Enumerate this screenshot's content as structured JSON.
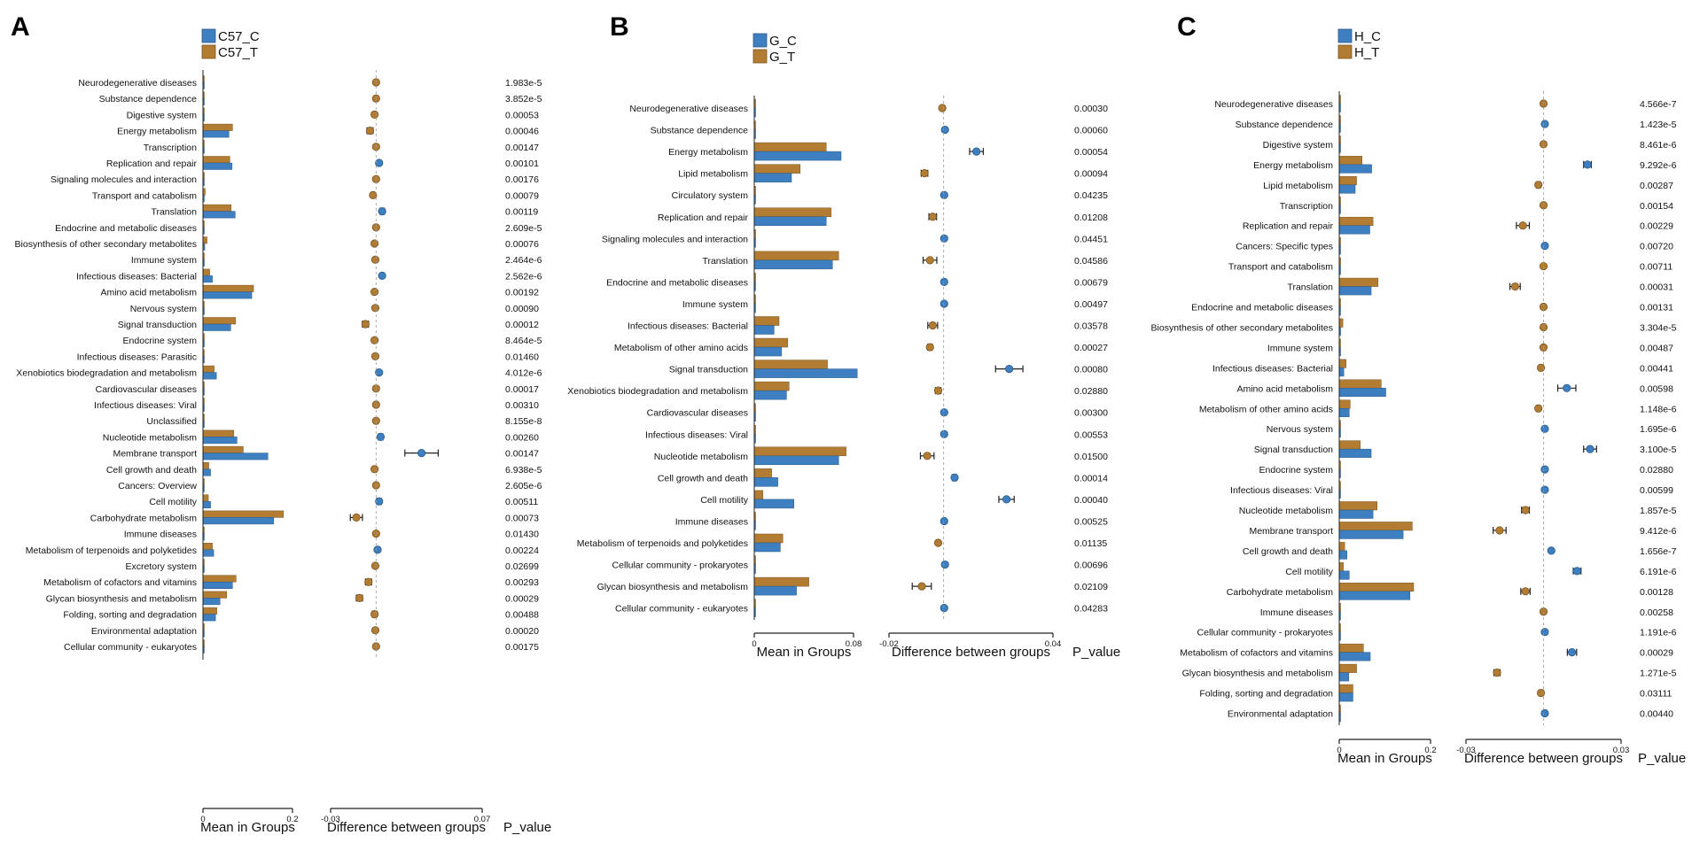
{
  "figure": {
    "colors": {
      "control": "#3d7fc0",
      "treatment": "#b27d33",
      "control_stroke": "#2a5a8a",
      "treatment_stroke": "#7a5420",
      "axis": "#222222"
    }
  },
  "chart_data": [
    {
      "type": "bar",
      "panel_label": "A",
      "legend": [
        "C57_C",
        "C57_T"
      ],
      "bar_axis_label": "Mean in Groups",
      "bar_xlim": [
        0,
        0.2
      ],
      "bar_ticks": [
        "0",
        "0.2"
      ],
      "diff_axis_label": "Difference between groups",
      "diff_xlim": [
        -0.03,
        0.07
      ],
      "diff_ticks": [
        "-0.03",
        "0.07"
      ],
      "pvalue_label": "P_value",
      "categories": [
        "Neurodegenerative diseases",
        "Substance dependence",
        "Digestive system",
        "Energy metabolism",
        "Transcription",
        "Replication and repair",
        "Signaling molecules and interaction",
        "Transport and catabolism",
        "Translation",
        "Endocrine and metabolic diseases",
        "Biosynthesis of other secondary metabolites",
        "Immune system",
        "Infectious diseases: Bacterial",
        "Amino acid metabolism",
        "Nervous system",
        "Signal transduction",
        "Endocrine system",
        "Infectious diseases: Parasitic",
        "Xenobiotics biodegradation and metabolism",
        "Cardiovascular diseases",
        "Infectious diseases: Viral",
        "Unclassified",
        "Nucleotide metabolism",
        "Membrane transport",
        "Cell growth and death",
        "Cancers: Overview",
        "Cell motility",
        "Carbohydrate metabolism",
        "Immune diseases",
        "Metabolism of terpenoids and polyketides",
        "Excretory system",
        "Metabolism of cofactors and vitamins",
        "Glycan biosynthesis and metabolism",
        "Folding, sorting and degradation",
        "Environmental adaptation",
        "Cellular community - eukaryotes"
      ],
      "series": [
        {
          "name": "C57_T",
          "values": [
            0.001,
            0.001,
            0.003,
            0.066,
            0.001,
            0.06,
            0.002,
            0.005,
            0.063,
            0.001,
            0.009,
            0.002,
            0.015,
            0.113,
            0.002,
            0.073,
            0.002,
            0.001,
            0.025,
            0.001,
            0.001,
            0.001,
            0.069,
            0.09,
            0.013,
            0.002,
            0.012,
            0.18,
            0.001,
            0.021,
            0.001,
            0.074,
            0.053,
            0.031,
            0.001,
            0.001
          ]
        },
        {
          "name": "C57_C",
          "values": [
            0.001,
            0.001,
            0.001,
            0.058,
            0.001,
            0.065,
            0.001,
            0.001,
            0.072,
            0.001,
            0.004,
            0.001,
            0.021,
            0.109,
            0.001,
            0.062,
            0.001,
            0.001,
            0.03,
            0.001,
            0.001,
            0.001,
            0.076,
            0.145,
            0.017,
            0.001,
            0.017,
            0.158,
            0.001,
            0.024,
            0.001,
            0.066,
            0.038,
            0.028,
            0.001,
            0.001
          ]
        }
      ],
      "differences": [
        0.0,
        0.0,
        -0.001,
        -0.004,
        0.0,
        0.002,
        0.0,
        -0.002,
        0.004,
        0.0,
        -0.001,
        -0.0005,
        0.004,
        -0.001,
        -0.0005,
        -0.007,
        -0.001,
        -0.0005,
        0.002,
        0.0,
        0.0,
        0.0,
        0.003,
        0.03,
        -0.001,
        0.0,
        0.002,
        -0.013,
        0.0,
        0.001,
        -0.0005,
        -0.005,
        -0.011,
        -0.001,
        -0.0005,
        0.0
      ],
      "errors": [
        0.0005,
        0.0005,
        0.001,
        0.002,
        0.0005,
        0.001,
        0.0005,
        0.001,
        0.0015,
        0.0005,
        0.001,
        0.0005,
        0.001,
        0.001,
        0.0005,
        0.002,
        0.0005,
        0.0005,
        0.001,
        0.0005,
        0.0005,
        0.0005,
        0.0015,
        0.011,
        0.001,
        0.0005,
        0.0015,
        0.004,
        0.0005,
        0.001,
        0.0005,
        0.002,
        0.002,
        0.0015,
        0.0005,
        0.0005
      ],
      "p_values": [
        "1.983e-5",
        "3.852e-5",
        "0.00053",
        "0.00046",
        "0.00147",
        "0.00101",
        "0.00176",
        "0.00079",
        "0.00119",
        "2.609e-5",
        "0.00076",
        "2.464e-6",
        "2.562e-6",
        "0.00192",
        "0.00090",
        "0.00012",
        "8.464e-5",
        "0.01460",
        "4.012e-6",
        "0.00017",
        "0.00310",
        "8.155e-8",
        "0.00260",
        "0.00147",
        "6.938e-5",
        "2.605e-6",
        "0.00511",
        "0.00073",
        "0.01430",
        "0.00224",
        "0.02699",
        "0.00293",
        "0.00029",
        "0.00488",
        "0.00020",
        "0.00175"
      ]
    },
    {
      "type": "bar",
      "panel_label": "B",
      "legend": [
        "G_C",
        "G_T"
      ],
      "bar_axis_label": "Mean in Groups",
      "bar_xlim": [
        0,
        0.08
      ],
      "bar_ticks": [
        "0",
        "0.08"
      ],
      "diff_axis_label": "Difference between groups",
      "diff_xlim": [
        -0.02,
        0.04
      ],
      "diff_ticks": [
        "-0.02",
        "0.04"
      ],
      "pvalue_label": "P_value",
      "categories": [
        "Neurodegenerative diseases",
        "Substance dependence",
        "Energy metabolism",
        "Lipid metabolism",
        "Circulatory system",
        "Replication and repair",
        "Signaling molecules and interaction",
        "Translation",
        "Endocrine and metabolic diseases",
        "Immune system",
        "Infectious diseases: Bacterial",
        "Metabolism of other amino acids",
        "Signal transduction",
        "Xenobiotics biodegradation and metabolism",
        "Cardiovascular diseases",
        "Infectious diseases: Viral",
        "Nucleotide metabolism",
        "Cell growth and death",
        "Cell motility",
        "Immune diseases",
        "Metabolism of terpenoids and polyketides",
        "Cellular community - prokaryotes",
        "Glycan biosynthesis and metabolism",
        "Cellular community - eukaryotes"
      ],
      "series": [
        {
          "name": "G_T",
          "values": [
            0.001,
            0.0005,
            0.058,
            0.037,
            0.0005,
            0.062,
            0.0005,
            0.068,
            0.0005,
            0.0005,
            0.02,
            0.027,
            0.059,
            0.028,
            0.0005,
            0.0005,
            0.074,
            0.014,
            0.007,
            0.0005,
            0.023,
            0.0005,
            0.044,
            0.0005
          ]
        },
        {
          "name": "G_C",
          "values": [
            0.001,
            0.0005,
            0.07,
            0.03,
            0.0005,
            0.058,
            0.0005,
            0.063,
            0.0005,
            0.0005,
            0.016,
            0.022,
            0.083,
            0.026,
            0.0005,
            0.0005,
            0.068,
            0.019,
            0.032,
            0.0005,
            0.021,
            0.0005,
            0.034,
            0.0005
          ]
        }
      ],
      "differences": [
        -0.0005,
        0.0005,
        0.012,
        -0.007,
        0.0002,
        -0.004,
        0.0002,
        -0.005,
        0.0002,
        0.0002,
        -0.004,
        -0.005,
        0.024,
        -0.002,
        0.0002,
        0.0002,
        -0.006,
        0.004,
        0.023,
        0.0002,
        -0.002,
        0.0005,
        -0.008,
        0.0002
      ],
      "errors": [
        0.0005,
        0.0005,
        0.0025,
        0.0012,
        0.0004,
        0.0014,
        0.0004,
        0.0025,
        0.0004,
        0.0004,
        0.0018,
        0.0008,
        0.005,
        0.001,
        0.0004,
        0.0004,
        0.0025,
        0.0008,
        0.0028,
        0.0004,
        0.0006,
        0.0004,
        0.0035,
        0.0004
      ],
      "p_values": [
        "0.00030",
        "0.00060",
        "0.00054",
        "0.00094",
        "0.04235",
        "0.01208",
        "0.04451",
        "0.04586",
        "0.00679",
        "0.00497",
        "0.03578",
        "0.00027",
        "0.00080",
        "0.02880",
        "0.00300",
        "0.00553",
        "0.01500",
        "0.00014",
        "0.00040",
        "0.00525",
        "0.01135",
        "0.00696",
        "0.02109",
        "0.04283"
      ]
    },
    {
      "type": "bar",
      "panel_label": "C",
      "legend": [
        "H_C",
        "H_T"
      ],
      "bar_axis_label": "Mean in Groups",
      "bar_xlim": [
        0,
        0.2
      ],
      "bar_ticks": [
        "0",
        "0.2"
      ],
      "diff_axis_label": "Difference between groups",
      "diff_xlim": [
        -0.03,
        0.03
      ],
      "diff_ticks": [
        "-0.03",
        "0.03"
      ],
      "pvalue_label": "P_value",
      "categories": [
        "Neurodegenerative diseases",
        "Substance dependence",
        "Digestive system",
        "Energy metabolism",
        "Lipid metabolism",
        "Transcription",
        "Replication and repair",
        "Cancers: Specific types",
        "Transport and catabolism",
        "Translation",
        "Endocrine and metabolic diseases",
        "Biosynthesis of other secondary metabolites",
        "Immune system",
        "Infectious diseases: Bacterial",
        "Amino acid metabolism",
        "Metabolism of other amino acids",
        "Nervous system",
        "Signal transduction",
        "Endocrine system",
        "Infectious diseases: Viral",
        "Nucleotide metabolism",
        "Membrane transport",
        "Cell growth and death",
        "Cell motility",
        "Carbohydrate metabolism",
        "Immune diseases",
        "Cellular community - prokaryotes",
        "Metabolism of cofactors and vitamins",
        "Glycan biosynthesis and metabolism",
        "Folding, sorting and degradation",
        "Environmental adaptation"
      ],
      "series": [
        {
          "name": "H_T",
          "values": [
            0.001,
            0.001,
            0.002,
            0.05,
            0.038,
            0.001,
            0.074,
            0.001,
            0.003,
            0.085,
            0.001,
            0.008,
            0.001,
            0.015,
            0.092,
            0.024,
            0.001,
            0.046,
            0.001,
            0.001,
            0.083,
            0.16,
            0.012,
            0.009,
            0.163,
            0.001,
            0.001,
            0.053,
            0.038,
            0.03,
            0.001
          ]
        },
        {
          "name": "H_C",
          "values": [
            0.001,
            0.001,
            0.001,
            0.071,
            0.035,
            0.001,
            0.067,
            0.001,
            0.001,
            0.07,
            0.001,
            0.003,
            0.001,
            0.01,
            0.102,
            0.022,
            0.001,
            0.07,
            0.001,
            0.001,
            0.074,
            0.14,
            0.017,
            0.022,
            0.155,
            0.001,
            0.001,
            0.068,
            0.021,
            0.03,
            0.001
          ]
        }
      ],
      "differences": [
        0.0,
        0.0005,
        0.0,
        0.017,
        -0.002,
        0.0,
        -0.008,
        0.0005,
        0.0,
        -0.011,
        0.0,
        0.0,
        0.0,
        -0.001,
        0.009,
        -0.002,
        0.0005,
        0.018,
        0.0005,
        0.0005,
        -0.007,
        -0.017,
        0.003,
        0.013,
        -0.007,
        0.0,
        0.0005,
        0.011,
        -0.018,
        -0.001,
        0.0005
      ],
      "errors": [
        0.0005,
        0.0005,
        0.0005,
        0.0015,
        0.0008,
        0.0005,
        0.0025,
        0.0005,
        0.0005,
        0.002,
        0.0005,
        0.0005,
        0.0005,
        0.0007,
        0.0035,
        0.0007,
        0.0005,
        0.0025,
        0.0005,
        0.0005,
        0.0015,
        0.0025,
        0.0005,
        0.0015,
        0.0018,
        0.0005,
        0.0005,
        0.0018,
        0.0012,
        0.0008,
        0.0005
      ],
      "p_values": [
        "4.566e-7",
        "1.423e-5",
        "8.461e-6",
        "9.292e-6",
        "0.00287",
        "0.00154",
        "0.00229",
        "0.00720",
        "0.00711",
        "0.00031",
        "0.00131",
        "3.304e-5",
        "0.00487",
        "0.00441",
        "0.00598",
        "1.148e-6",
        "1.695e-6",
        "3.100e-5",
        "0.02880",
        "0.00599",
        "1.857e-5",
        "9.412e-6",
        "1.656e-7",
        "6.191e-6",
        "0.00128",
        "0.00258",
        "1.191e-6",
        "0.00029",
        "1.271e-5",
        "0.03111",
        "0.00440"
      ]
    }
  ]
}
